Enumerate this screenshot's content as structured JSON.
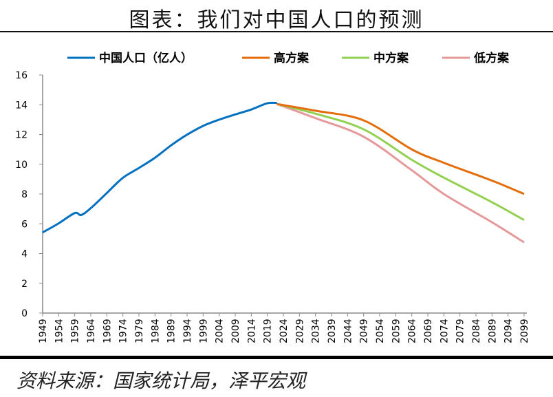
{
  "title": "图表：我们对中国人口的预测",
  "source": "资料来源：国家统计局，泽平宏观",
  "chart_data": {
    "type": "line",
    "title": "",
    "xlabel": "",
    "ylabel": "",
    "ylim": [
      0,
      16
    ],
    "yticks": [
      0,
      2,
      4,
      6,
      8,
      10,
      12,
      14,
      16
    ],
    "xlim": [
      1949,
      2099
    ],
    "xticks": [
      "1949",
      "1954",
      "1959",
      "1964",
      "1969",
      "1974",
      "1979",
      "1984",
      "1989",
      "1994",
      "1999",
      "2004",
      "2009",
      "2014",
      "2019",
      "2024",
      "2029",
      "2034",
      "2039",
      "2044",
      "2049",
      "2054",
      "2059",
      "2064",
      "2069",
      "2074",
      "2079",
      "2084",
      "2089",
      "2094",
      "2099"
    ],
    "grid": false,
    "legend_position": "top",
    "series": [
      {
        "name": "中国人口（亿人）",
        "color": "#0070C0",
        "x": [
          1949,
          1954,
          1959,
          1961,
          1964,
          1969,
          1974,
          1979,
          1984,
          1989,
          1994,
          1999,
          2004,
          2009,
          2014,
          2019,
          2022
        ],
        "y": [
          5.42,
          6.03,
          6.72,
          6.59,
          7.05,
          8.07,
          9.09,
          9.75,
          10.44,
          11.27,
          11.99,
          12.58,
          13.0,
          13.35,
          13.68,
          14.1,
          14.12
        ]
      },
      {
        "name": "高方案",
        "color": "#E46C0A",
        "x": [
          2022,
          2034,
          2049,
          2064,
          2074,
          2089,
          2099
        ],
        "y": [
          14.05,
          13.6,
          12.95,
          11.0,
          10.1,
          8.9,
          8.0
        ]
      },
      {
        "name": "中方案",
        "color": "#92D050",
        "x": [
          2022,
          2034,
          2049,
          2064,
          2074,
          2089,
          2099
        ],
        "y": [
          14.05,
          13.4,
          12.35,
          10.3,
          9.1,
          7.45,
          6.25
        ]
      },
      {
        "name": "低方案",
        "color": "#E6999A",
        "x": [
          2022,
          2034,
          2049,
          2064,
          2074,
          2089,
          2099
        ],
        "y": [
          14.05,
          13.1,
          11.85,
          9.6,
          8.0,
          6.1,
          4.75
        ]
      }
    ]
  }
}
